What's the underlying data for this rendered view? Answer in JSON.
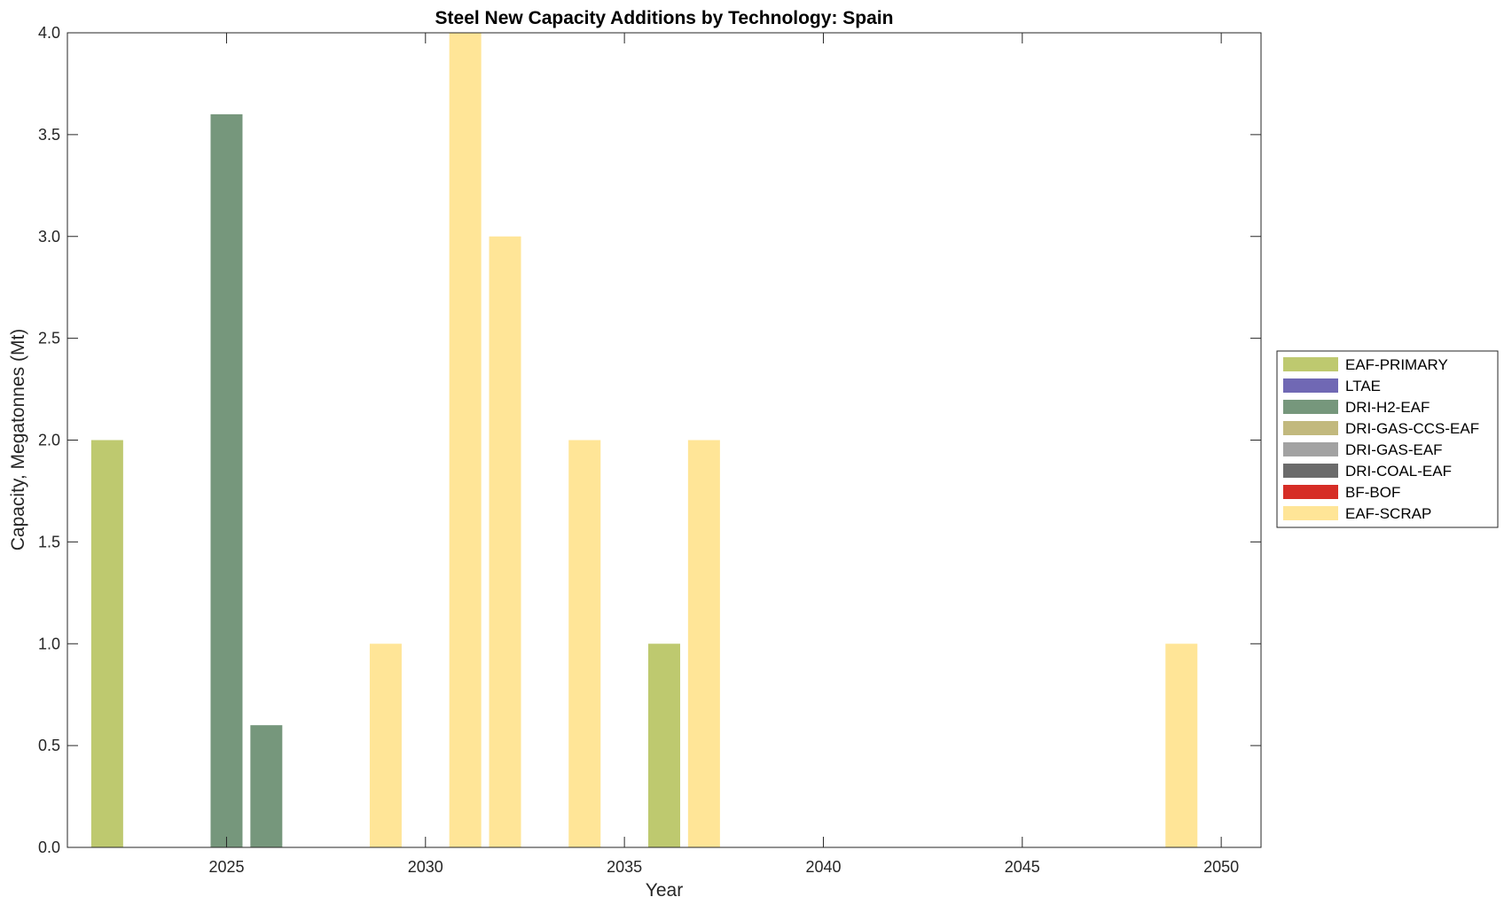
{
  "chart_data": {
    "type": "bar",
    "title": "Steel New Capacity Additions by Technology: Spain",
    "xlabel": "Year",
    "ylabel": "Capacity, Megatonnes (Mt)",
    "xlim": [
      2021,
      2051
    ],
    "ylim": [
      0,
      4
    ],
    "xticks": [
      2025,
      2030,
      2035,
      2040,
      2045,
      2050
    ],
    "yticks": [
      0.0,
      0.5,
      1.0,
      1.5,
      2.0,
      2.5,
      3.0,
      3.5,
      4.0
    ],
    "ytick_labels": [
      "0.0",
      "0.5",
      "1.0",
      "1.5",
      "2.0",
      "2.5",
      "3.0",
      "3.5",
      "4.0"
    ],
    "grid": false,
    "legend_position": "right",
    "series": [
      {
        "name": "EAF-PRIMARY",
        "color": "#bec96f",
        "points": [
          {
            "x": 2022,
            "y": 2.0
          },
          {
            "x": 2036,
            "y": 1.0
          }
        ]
      },
      {
        "name": "LTAE",
        "color": "#7068b4",
        "points": []
      },
      {
        "name": "DRI-H2-EAF",
        "color": "#76977c",
        "points": [
          {
            "x": 2025,
            "y": 3.6
          },
          {
            "x": 2026,
            "y": 0.6
          }
        ]
      },
      {
        "name": "DRI-GAS-CCS-EAF",
        "color": "#c2b97e",
        "points": []
      },
      {
        "name": "DRI-GAS-EAF",
        "color": "#a2a2a2",
        "points": []
      },
      {
        "name": "DRI-COAL-EAF",
        "color": "#6b6b6b",
        "points": []
      },
      {
        "name": "BF-BOF",
        "color": "#d62d26",
        "points": []
      },
      {
        "name": "EAF-SCRAP",
        "color": "#ffe597",
        "points": [
          {
            "x": 2029,
            "y": 1.0
          },
          {
            "x": 2031,
            "y": 4.0
          },
          {
            "x": 2032,
            "y": 3.0
          },
          {
            "x": 2034,
            "y": 2.0
          },
          {
            "x": 2037,
            "y": 2.0
          },
          {
            "x": 2049,
            "y": 1.0
          }
        ]
      }
    ]
  }
}
